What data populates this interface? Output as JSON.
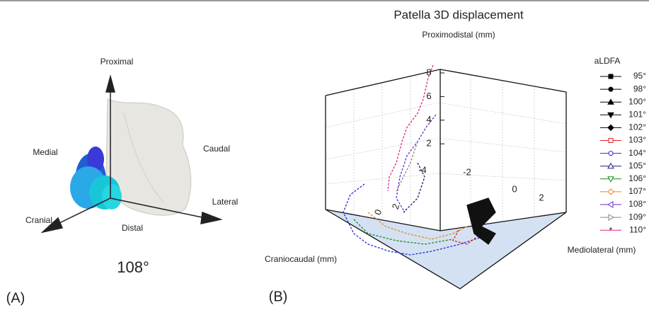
{
  "panel_a": {
    "tag": "(A)",
    "angle": "108°",
    "directions": {
      "proximal": "Proximal",
      "medial": "Medial",
      "caudal": "Caudal",
      "lateral": "Lateral",
      "cranial": "Cranial",
      "distal": "Distal"
    }
  },
  "panel_b": {
    "tag": "(B)",
    "title": "Patella 3D displacement",
    "axis_labels": {
      "z": "Proximodistal (mm)",
      "x": "Craniocaudal (mm)",
      "y": "Mediolateral (mm)"
    },
    "z_ticks": [
      8,
      6,
      4,
      2
    ],
    "back_ticks": [
      -4,
      -2,
      0,
      2
    ],
    "front_ticks": [
      0,
      2
    ],
    "legend": {
      "title": "aLDFA",
      "entries": [
        {
          "label": "95°",
          "color": "#000000",
          "marker": "square"
        },
        {
          "label": "98°",
          "color": "#000000",
          "marker": "circle"
        },
        {
          "label": "100°",
          "color": "#000000",
          "marker": "up"
        },
        {
          "label": "101°",
          "color": "#000000",
          "marker": "down"
        },
        {
          "label": "102°",
          "color": "#000000",
          "marker": "diamond"
        },
        {
          "label": "103°",
          "color": "#e02020",
          "marker": "square-open"
        },
        {
          "label": "104°",
          "color": "#2a2ad0",
          "marker": "circle-open"
        },
        {
          "label": "105°",
          "color": "#1a1a80",
          "marker": "up-open"
        },
        {
          "label": "106°",
          "color": "#1a8a1a",
          "marker": "down-open"
        },
        {
          "label": "107°",
          "color": "#e08a20",
          "marker": "diamond-open"
        },
        {
          "label": "108°",
          "color": "#6a2ad0",
          "marker": "left-open"
        },
        {
          "label": "109°",
          "color": "#888888",
          "marker": "right-open"
        },
        {
          "label": "110°",
          "color": "#e0208a",
          "marker": "star"
        }
      ]
    }
  }
}
